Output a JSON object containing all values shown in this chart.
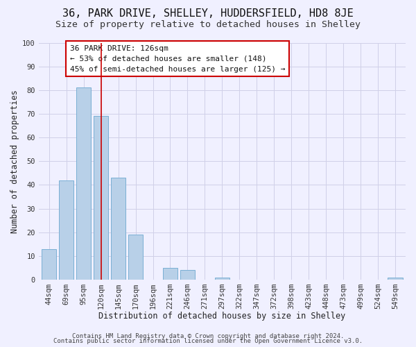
{
  "title": "36, PARK DRIVE, SHELLEY, HUDDERSFIELD, HD8 8JE",
  "subtitle": "Size of property relative to detached houses in Shelley",
  "xlabel": "Distribution of detached houses by size in Shelley",
  "ylabel": "Number of detached properties",
  "bar_labels": [
    "44sqm",
    "69sqm",
    "95sqm",
    "120sqm",
    "145sqm",
    "170sqm",
    "196sqm",
    "221sqm",
    "246sqm",
    "271sqm",
    "297sqm",
    "322sqm",
    "347sqm",
    "372sqm",
    "398sqm",
    "423sqm",
    "448sqm",
    "473sqm",
    "499sqm",
    "524sqm",
    "549sqm"
  ],
  "bar_values": [
    13,
    42,
    81,
    69,
    43,
    19,
    0,
    5,
    4,
    0,
    1,
    0,
    0,
    0,
    0,
    0,
    0,
    0,
    0,
    0,
    1
  ],
  "bar_color": "#b8d0e8",
  "bar_edge_color": "#7aafd4",
  "vline_x": 3,
  "vline_color": "#cc0000",
  "ylim": [
    0,
    100
  ],
  "yticks": [
    0,
    10,
    20,
    30,
    40,
    50,
    60,
    70,
    80,
    90,
    100
  ],
  "annotation_title": "36 PARK DRIVE: 126sqm",
  "annotation_line1": "← 53% of detached houses are smaller (148)",
  "annotation_line2": "45% of semi-detached houses are larger (125) →",
  "footer1": "Contains HM Land Registry data © Crown copyright and database right 2024.",
  "footer2": "Contains public sector information licensed under the Open Government Licence v3.0.",
  "background_color": "#f0f0ff",
  "grid_color": "#d0d0e8",
  "title_fontsize": 11,
  "subtitle_fontsize": 9.5,
  "axis_label_fontsize": 8.5,
  "tick_fontsize": 7.5,
  "annotation_fontsize": 8,
  "footer_fontsize": 6.5
}
